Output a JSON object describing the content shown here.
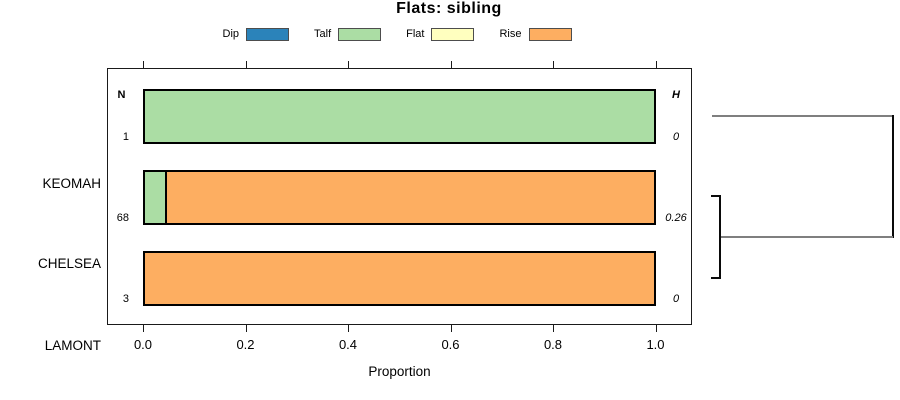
{
  "chart_data": {
    "type": "bar",
    "variant": "horizontal-stacked-proportion",
    "title": "Flats: sibling",
    "xlabel": "Proportion",
    "xlim": [
      0,
      1
    ],
    "x_ticks": [
      "0.0",
      "0.2",
      "0.4",
      "0.6",
      "0.8",
      "1.0"
    ],
    "grid": false,
    "legend": {
      "position": "top-center",
      "items": [
        {
          "label": "Dip",
          "color": "#2B83BA"
        },
        {
          "label": "Talf",
          "color": "#ABDDA4"
        },
        {
          "label": "Flat",
          "color": "#FFFFBF"
        },
        {
          "label": "Rise",
          "color": "#FDAE61"
        }
      ]
    },
    "columns": {
      "left_header": "N",
      "right_header": "H"
    },
    "rows": [
      {
        "category": "KEOMAH",
        "n": "1",
        "h": "0",
        "segments": [
          {
            "name": "Talf",
            "value": 1.0
          }
        ]
      },
      {
        "category": "CHELSEA",
        "n": "68",
        "h": "0.26",
        "segments": [
          {
            "name": "Talf",
            "value": 0.044
          },
          {
            "name": "Rise",
            "value": 0.956
          }
        ]
      },
      {
        "category": "LAMONT",
        "n": "3",
        "h": "0",
        "segments": [
          {
            "name": "Rise",
            "value": 1.0
          }
        ]
      }
    ],
    "dendrogram": {
      "side": "right",
      "merges": [
        {
          "members": [
            "CHELSEA",
            "LAMONT"
          ],
          "order": 1
        },
        {
          "members": [
            "CHELSEA+LAMONT",
            "KEOMAH"
          ],
          "order": 2
        }
      ]
    }
  }
}
